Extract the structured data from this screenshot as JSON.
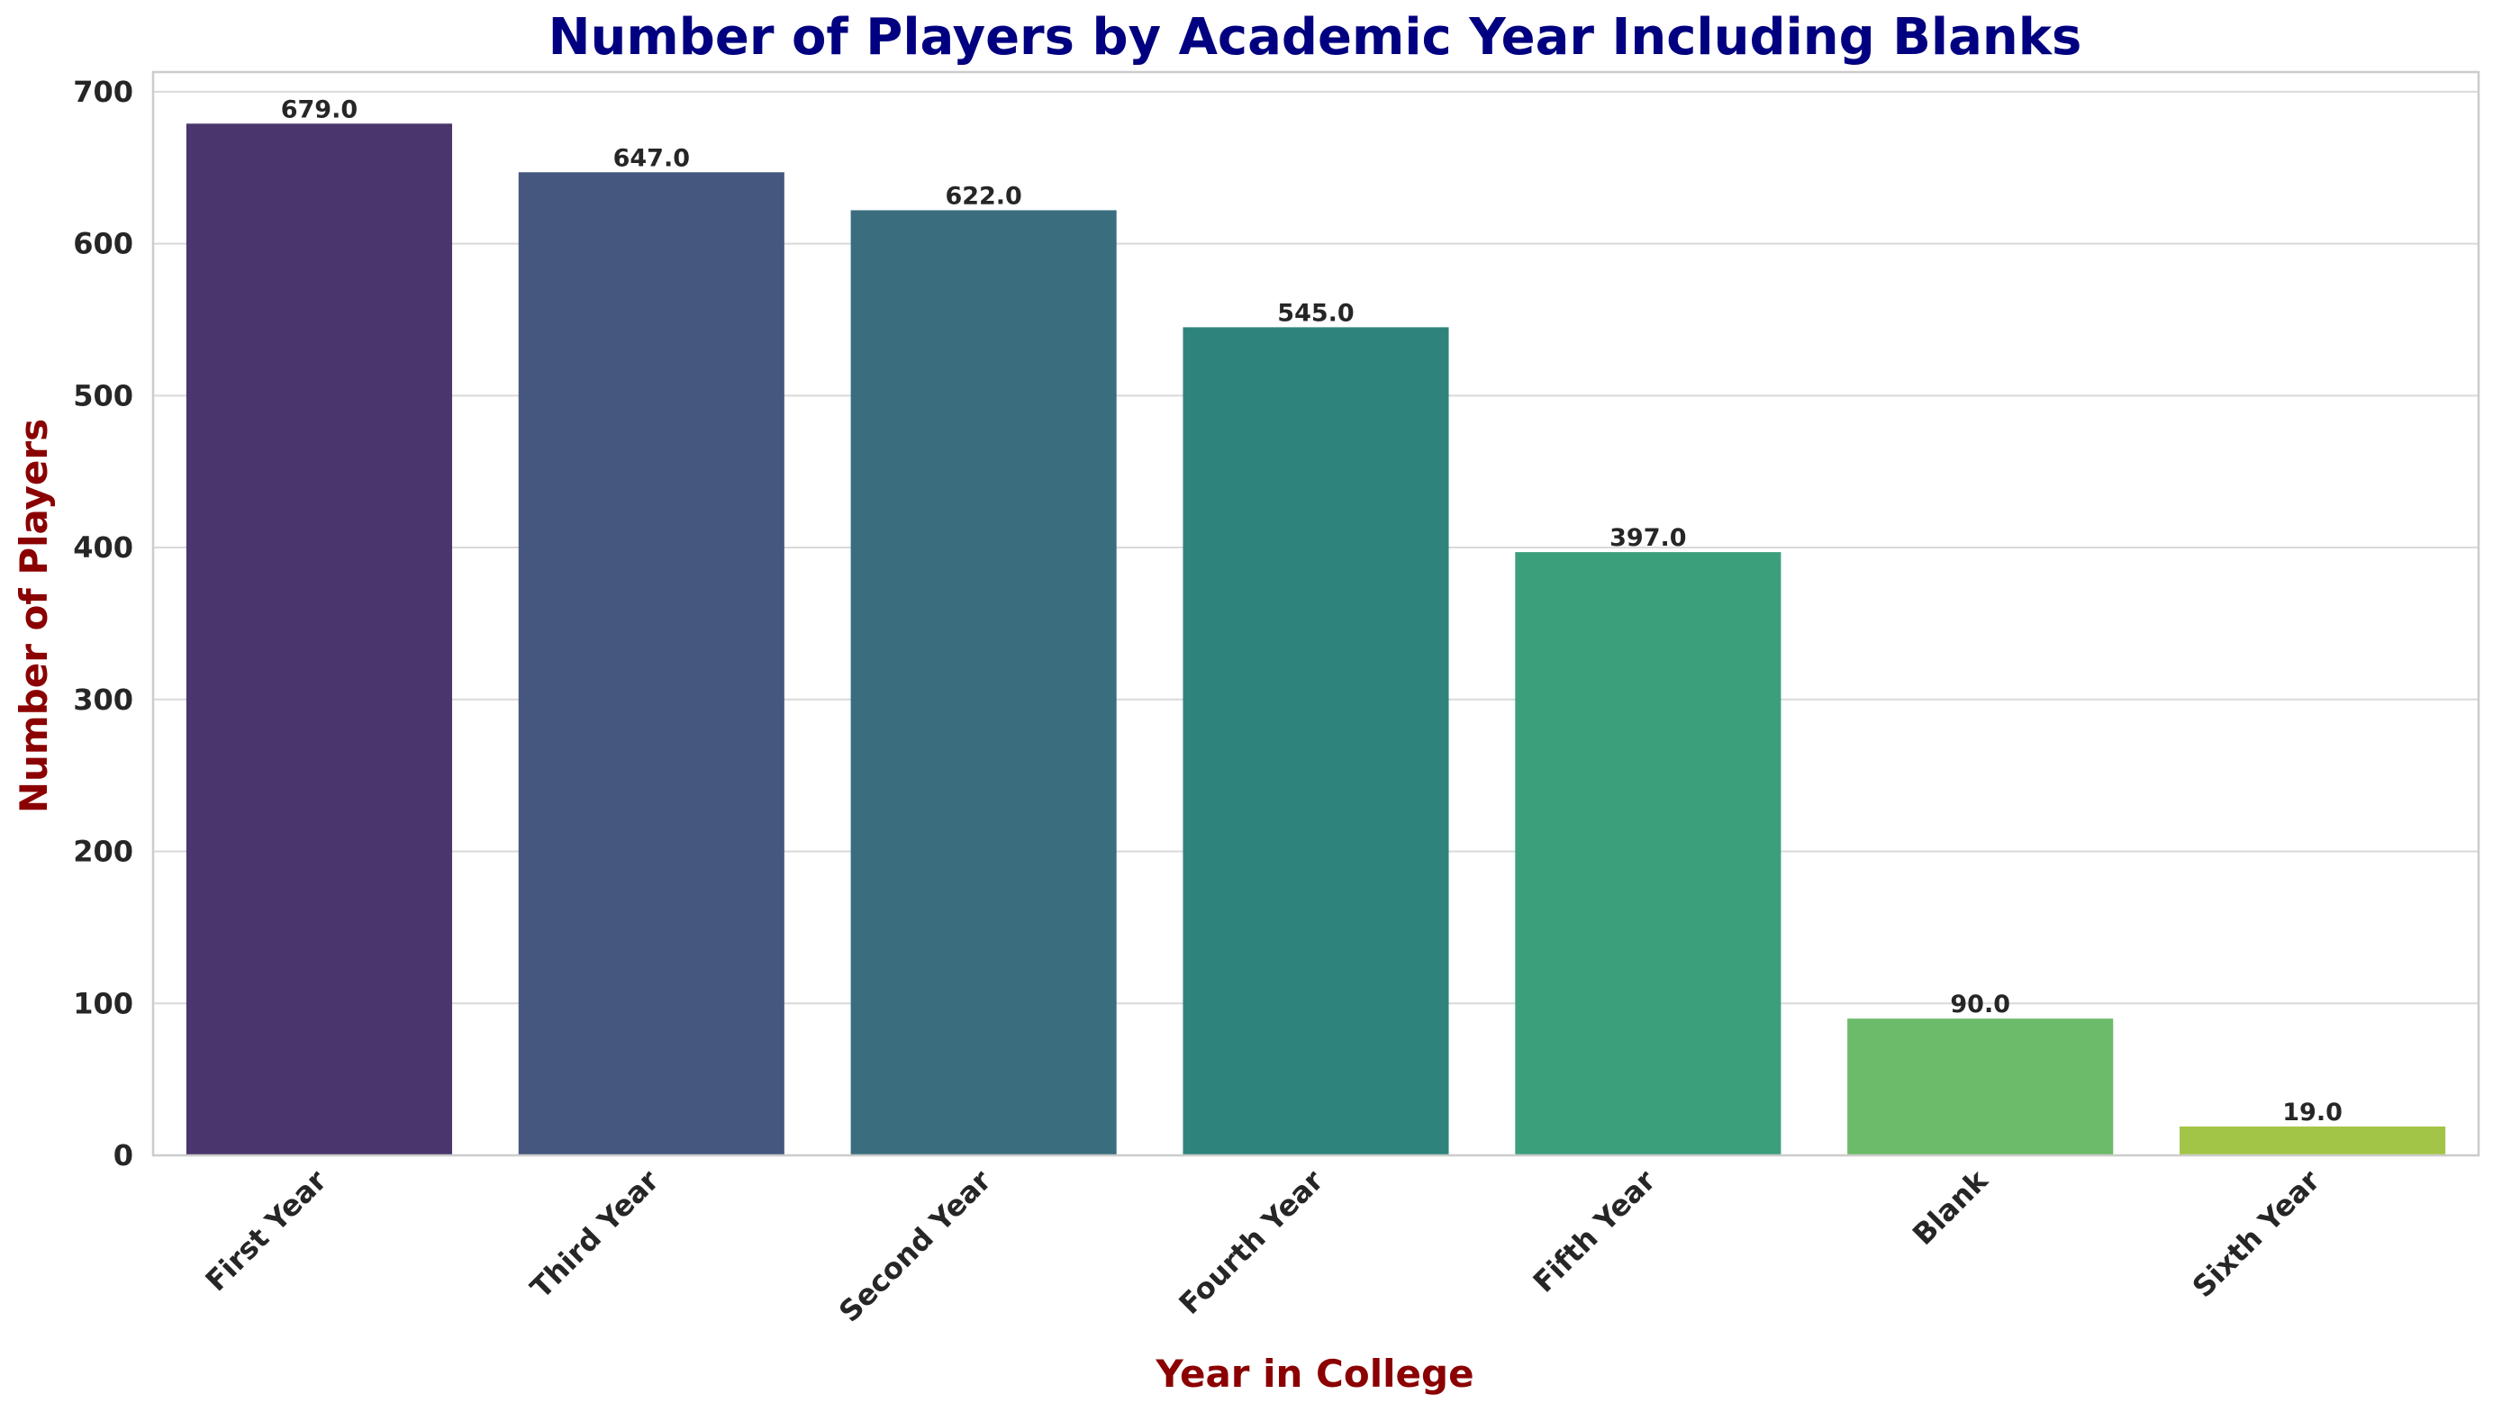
{
  "chart_data": {
    "type": "bar",
    "title": "Number of Players by Academic Year Including Blanks",
    "xlabel": "Year in College",
    "ylabel": "Number of Players",
    "categories": [
      "First Year",
      "Third Year",
      "Second Year",
      "Fourth Year",
      "Fifth Year",
      "Blank",
      "Sixth Year"
    ],
    "values": [
      679,
      647,
      622,
      545,
      397,
      90,
      19
    ],
    "data_labels": [
      "679.0",
      "647.0",
      "622.0",
      "545.0",
      "397.0",
      "90.0",
      "19.0"
    ],
    "ylim": [
      0,
      712.95
    ],
    "yticks": [
      0,
      100,
      200,
      300,
      400,
      500,
      600,
      700
    ],
    "grid": "horizontal",
    "legend": "none",
    "colors": [
      "#4a366d",
      "#45577e",
      "#3a6e7f",
      "#2e847c",
      "#3c9f7c",
      "#6cbb6a",
      "#a3c547"
    ],
    "title_color": "#000080",
    "label_color": "#8b0000"
  }
}
